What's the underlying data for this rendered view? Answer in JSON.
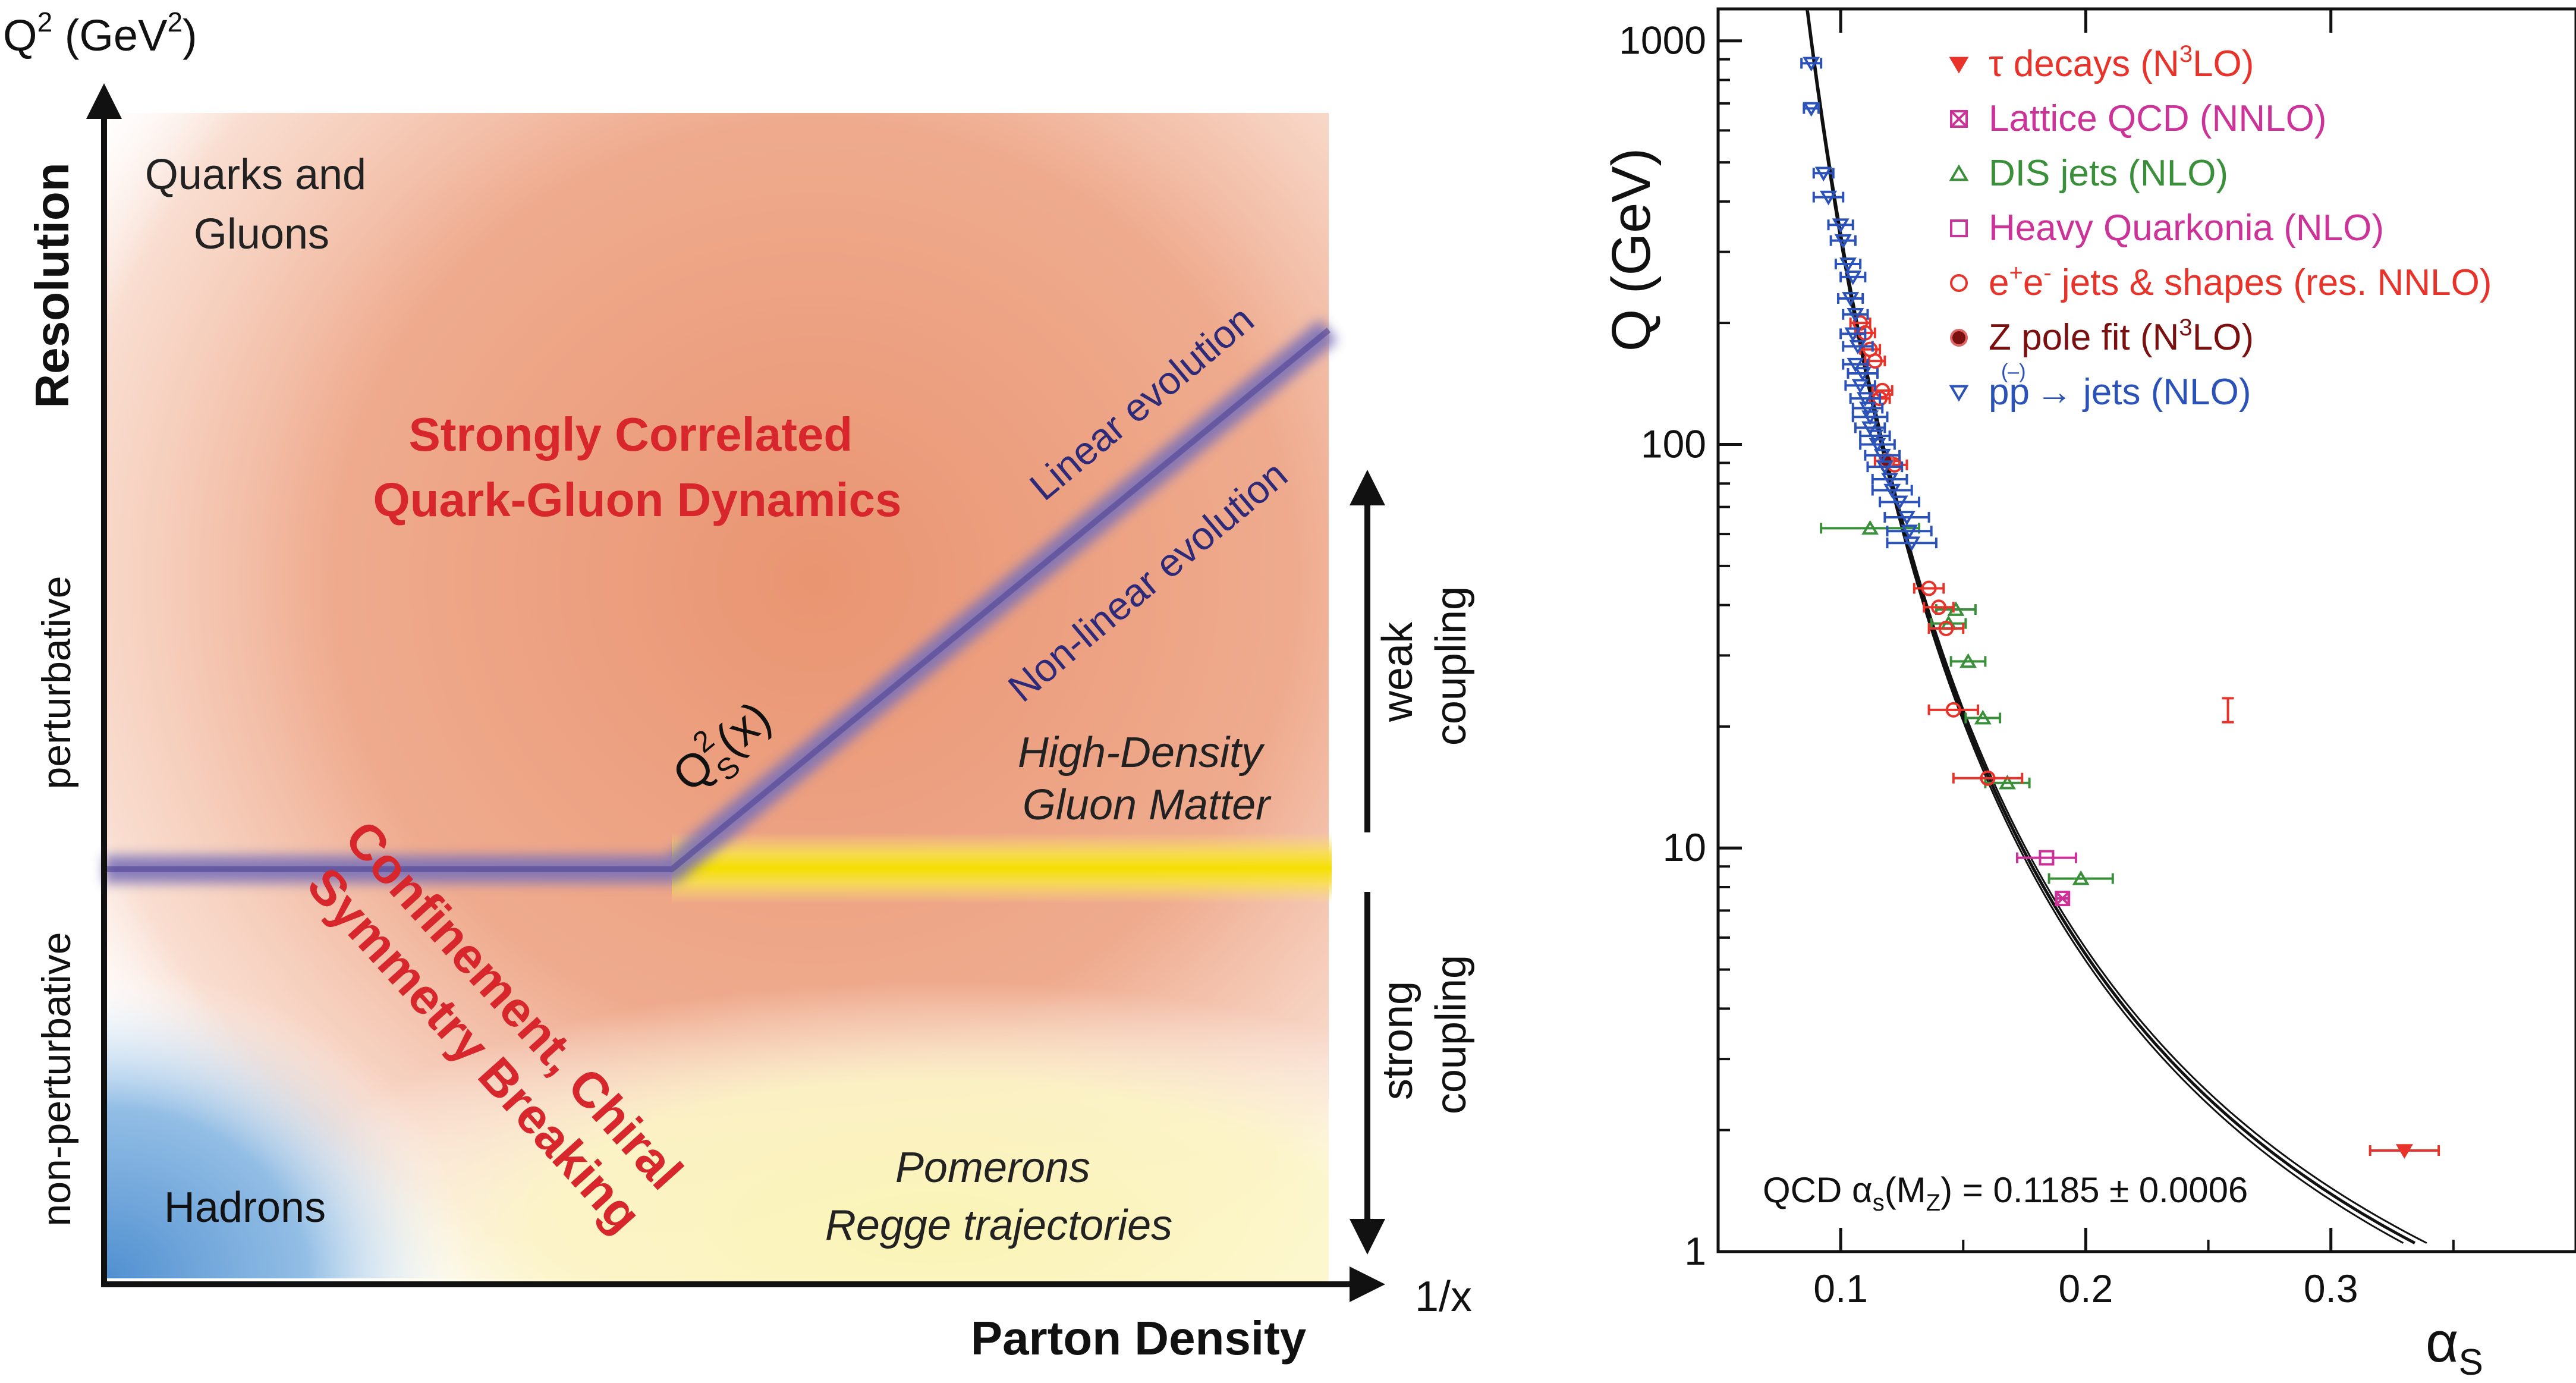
{
  "left_panel": {
    "y_axis_label": "Q",
    "y_axis_label_sup": "2",
    "y_axis_units_open": " (GeV",
    "y_axis_units_sup": "2",
    "y_axis_units_close": ")",
    "y_axis_title": "Resolution",
    "x_axis_title": "Parton Density",
    "x_axis_label": "1/x",
    "perturbative": "perturbative",
    "non_perturbative": "non-perturbative",
    "quarks_gluons": [
      "Quarks and",
      "Gluons"
    ],
    "strongly_correlated": [
      "Strongly Correlated",
      "Quark-Gluon Dynamics"
    ],
    "linear_evolution": "Linear evolution",
    "nonlinear_evolution": "Non-linear evolution",
    "saturation_scale": "Q",
    "saturation_scale_sup": "2",
    "saturation_scale_sub": "S",
    "saturation_scale_arg": "(x)",
    "high_density": [
      "High-Density",
      "Gluon Matter"
    ],
    "confinement": [
      "Confinement, Chiral",
      "Symmetry Breaking"
    ],
    "hadrons": "Hadrons",
    "pomerons": [
      "Pomerons",
      "Regge trajectories"
    ],
    "weak_coupling": [
      "weak",
      "coupling"
    ],
    "strong_coupling": [
      "strong",
      "coupling"
    ]
  },
  "chart_data": {
    "type": "scatter",
    "xlabel": "α",
    "xlabel_sub": "S",
    "ylabel": "Q (GeV)",
    "y_scale": "log",
    "xlim": [
      0.05,
      0.4
    ],
    "ylim": [
      1,
      1200
    ],
    "x_ticks": [
      0.1,
      0.2,
      0.3
    ],
    "x_tick_labels": [
      "0.1",
      "0.2",
      "0.3"
    ],
    "y_ticks": [
      1,
      10,
      100,
      1000
    ],
    "y_tick_labels": [
      "1",
      "10",
      "100",
      "1000"
    ],
    "annotation": "QCD α",
    "annotation_sub": "s",
    "annotation_open": "(M",
    "annotation_sub2": "Z",
    "annotation_close": ") = 0.1185 ± 0.0006",
    "legend_position": "top-right",
    "alpha_mz": 0.1185,
    "alpha_mz_err": 0.0006,
    "series": [
      {
        "name_parts": [
          "τ decays (N",
          "3",
          "LO)"
        ],
        "marker": "down-triangle-filled",
        "color": "#e8332a",
        "points": [
          {
            "x": 0.33,
            "y": 1.78,
            "xerr": 0.014
          }
        ]
      },
      {
        "name_parts": [
          "Lattice QCD (NNLO)"
        ],
        "marker": "box-x",
        "color": "#cc3399",
        "points": [
          {
            "x": 0.1905,
            "y": 7.5,
            "xerr": 0.0025
          }
        ]
      },
      {
        "name_parts": [
          "DIS jets (NLO)"
        ],
        "marker": "up-triangle",
        "color": "#3a8f3a",
        "points": [
          {
            "x": 0.112,
            "y": 62,
            "xerr": 0.02
          },
          {
            "x": 0.144,
            "y": 36,
            "xerr": 0.007
          },
          {
            "x": 0.147,
            "y": 39,
            "xerr": 0.008
          },
          {
            "x": 0.152,
            "y": 29,
            "xerr": 0.007
          },
          {
            "x": 0.158,
            "y": 21,
            "xerr": 0.007
          },
          {
            "x": 0.168,
            "y": 14.5,
            "xerr": 0.009
          },
          {
            "x": 0.198,
            "y": 8.4,
            "xerr": 0.013
          }
        ]
      },
      {
        "name_parts": [
          "Heavy Quarkonia (NLO)"
        ],
        "marker": "square-open",
        "color": "#cc3399",
        "points": [
          {
            "x": 0.184,
            "y": 9.46,
            "xerr": 0.012
          }
        ]
      },
      {
        "name_parts": [
          "e",
          "+",
          "e",
          "-",
          " jets & shapes (res. NNLO)"
        ],
        "marker": "circle-open",
        "color": "#e8332a",
        "points": [
          {
            "x": 0.108,
            "y": 200,
            "xerr": 0.004
          },
          {
            "x": 0.11,
            "y": 189,
            "xerr": 0.004
          },
          {
            "x": 0.112,
            "y": 172,
            "xerr": 0.004
          },
          {
            "x": 0.114,
            "y": 161,
            "xerr": 0.004
          },
          {
            "x": 0.117,
            "y": 136,
            "xerr": 0.004
          },
          {
            "x": 0.116,
            "y": 130,
            "xerr": 0.004
          },
          {
            "x": 0.119,
            "y": 91,
            "xerr": 0.005
          },
          {
            "x": 0.122,
            "y": 89,
            "xerr": 0.005
          },
          {
            "x": 0.136,
            "y": 44,
            "xerr": 0.006
          },
          {
            "x": 0.14,
            "y": 39.5,
            "xerr": 0.006
          },
          {
            "x": 0.143,
            "y": 35,
            "xerr": 0.007
          },
          {
            "x": 0.146,
            "y": 22,
            "xerr": 0.01
          },
          {
            "x": 0.16,
            "y": 14.9,
            "xerr": 0.014
          }
        ]
      },
      {
        "name_parts": [
          "Z pole fit (N",
          "3",
          "LO)"
        ],
        "marker": "circle-filled",
        "color": "#7a1010",
        "points": [
          {
            "x": 0.1185,
            "y": 91.2,
            "xerr": 0.0006
          }
        ]
      },
      {
        "name_parts": [
          "pp",
          "(–)",
          " → jets (NLO)"
        ],
        "marker": "down-triangle",
        "color": "#2b52b8",
        "points": [
          {
            "x": 0.088,
            "y": 880,
            "xerr": 0.004
          },
          {
            "x": 0.088,
            "y": 680,
            "xerr": 0.003
          },
          {
            "x": 0.093,
            "y": 470,
            "xerr": 0.004
          },
          {
            "x": 0.095,
            "y": 410,
            "xerr": 0.006
          },
          {
            "x": 0.1,
            "y": 350,
            "xerr": 0.005
          },
          {
            "x": 0.101,
            "y": 320,
            "xerr": 0.005
          },
          {
            "x": 0.103,
            "y": 280,
            "xerr": 0.005
          },
          {
            "x": 0.105,
            "y": 260,
            "xerr": 0.005
          },
          {
            "x": 0.104,
            "y": 230,
            "xerr": 0.005
          },
          {
            "x": 0.106,
            "y": 210,
            "xerr": 0.005
          },
          {
            "x": 0.105,
            "y": 188,
            "xerr": 0.005
          },
          {
            "x": 0.107,
            "y": 175,
            "xerr": 0.006
          },
          {
            "x": 0.106,
            "y": 158,
            "xerr": 0.005
          },
          {
            "x": 0.109,
            "y": 150,
            "xerr": 0.006
          },
          {
            "x": 0.108,
            "y": 140,
            "xerr": 0.006
          },
          {
            "x": 0.11,
            "y": 130,
            "xerr": 0.006
          },
          {
            "x": 0.111,
            "y": 123,
            "xerr": 0.006
          },
          {
            "x": 0.112,
            "y": 117,
            "xerr": 0.007
          },
          {
            "x": 0.112,
            "y": 110,
            "xerr": 0.006
          },
          {
            "x": 0.114,
            "y": 105,
            "xerr": 0.006
          },
          {
            "x": 0.115,
            "y": 100,
            "xerr": 0.007
          },
          {
            "x": 0.117,
            "y": 94,
            "xerr": 0.007
          },
          {
            "x": 0.118,
            "y": 88,
            "xerr": 0.007
          },
          {
            "x": 0.12,
            "y": 82,
            "xerr": 0.007
          },
          {
            "x": 0.121,
            "y": 77,
            "xerr": 0.008
          },
          {
            "x": 0.124,
            "y": 72,
            "xerr": 0.008
          },
          {
            "x": 0.127,
            "y": 66,
            "xerr": 0.009
          },
          {
            "x": 0.128,
            "y": 61,
            "xerr": 0.009
          },
          {
            "x": 0.129,
            "y": 57,
            "xerr": 0.01
          }
        ]
      }
    ]
  }
}
